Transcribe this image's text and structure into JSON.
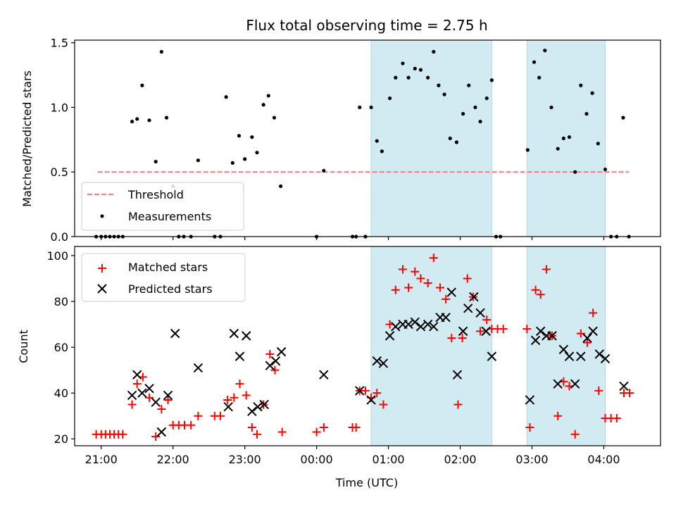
{
  "chart_data": {
    "title": "Flux total observing time = 2.75 h",
    "xlabel": "Time (UTC)",
    "x_axis": {
      "unit": "hours since 21:00 UTC (monotonic across midnight)",
      "range": [
        -0.37,
        7.79
      ],
      "ticks": [
        {
          "value": 0,
          "label": "21:00"
        },
        {
          "value": 1,
          "label": "22:00"
        },
        {
          "value": 2,
          "label": "23:00"
        },
        {
          "value": 3,
          "label": "00:00"
        },
        {
          "value": 4,
          "label": "01:00"
        },
        {
          "value": 5,
          "label": "02:00"
        },
        {
          "value": 6,
          "label": "03:00"
        },
        {
          "value": 7,
          "label": "04:00"
        }
      ]
    },
    "shaded_intervals": [
      [
        3.76,
        5.44
      ],
      [
        5.93,
        7.02
      ]
    ],
    "shade_color": "#add8e6",
    "panels": [
      {
        "id": "top",
        "type": "scatter",
        "ylabel": "Matched/Predicted stars",
        "ylim": [
          0,
          1.52
        ],
        "yticks": [
          0.0,
          0.5,
          1.0,
          1.5
        ],
        "ytick_labels": [
          "0.0",
          "0.5",
          "1.0",
          "1.5"
        ],
        "legend": {
          "position": "lower-left",
          "entries": [
            "Threshold",
            "Measurements"
          ]
        },
        "threshold": {
          "name": "Threshold",
          "y": 0.5,
          "x_range": [
            -0.05,
            7.35
          ],
          "color": "#f08080"
        },
        "measurements": {
          "name": "Measurements",
          "color": "#000000",
          "points": [
            [
              -0.07,
              0
            ],
            [
              0.0,
              0
            ],
            [
              0.06,
              0
            ],
            [
              0.12,
              0
            ],
            [
              0.18,
              0
            ],
            [
              0.24,
              0
            ],
            [
              0.3,
              0
            ],
            [
              0.43,
              0.89
            ],
            [
              0.5,
              0.91
            ],
            [
              0.57,
              1.17
            ],
            [
              0.67,
              0.9
            ],
            [
              0.76,
              0.58
            ],
            [
              0.84,
              1.43
            ],
            [
              0.91,
              0.92
            ],
            [
              1.0,
              0.39
            ],
            [
              1.08,
              0
            ],
            [
              1.15,
              0
            ],
            [
              1.25,
              0
            ],
            [
              1.35,
              0.59
            ],
            [
              1.58,
              0
            ],
            [
              1.66,
              0
            ],
            [
              1.74,
              1.08
            ],
            [
              1.83,
              0.57
            ],
            [
              1.92,
              0.78
            ],
            [
              2.0,
              0.6
            ],
            [
              2.1,
              0.77
            ],
            [
              2.17,
              0.65
            ],
            [
              2.26,
              1.02
            ],
            [
              2.33,
              1.09
            ],
            [
              2.41,
              0.92
            ],
            [
              2.5,
              0.39
            ],
            [
              3.0,
              0
            ],
            [
              3.1,
              0.51
            ],
            [
              3.5,
              0
            ],
            [
              3.55,
              0
            ],
            [
              3.6,
              1.0
            ],
            [
              3.68,
              0
            ],
            [
              3.76,
              1.0
            ],
            [
              3.84,
              0.74
            ],
            [
              3.91,
              0.66
            ],
            [
              4.02,
              1.07
            ],
            [
              4.1,
              1.23
            ],
            [
              4.2,
              1.34
            ],
            [
              4.28,
              1.23
            ],
            [
              4.37,
              1.3
            ],
            [
              4.45,
              1.29
            ],
            [
              4.55,
              1.23
            ],
            [
              4.63,
              1.43
            ],
            [
              4.7,
              1.17
            ],
            [
              4.78,
              1.1
            ],
            [
              4.86,
              0.76
            ],
            [
              4.95,
              0.73
            ],
            [
              5.04,
              0.95
            ],
            [
              5.12,
              1.17
            ],
            [
              5.21,
              1.0
            ],
            [
              5.28,
              0.89
            ],
            [
              5.37,
              1.07
            ],
            [
              5.44,
              1.21
            ],
            [
              5.5,
              0
            ],
            [
              5.56,
              0
            ],
            [
              5.94,
              0.67
            ],
            [
              6.03,
              1.35
            ],
            [
              6.1,
              1.23
            ],
            [
              6.18,
              1.44
            ],
            [
              6.27,
              1.0
            ],
            [
              6.36,
              0.68
            ],
            [
              6.44,
              0.76
            ],
            [
              6.52,
              0.77
            ],
            [
              6.6,
              0.5
            ],
            [
              6.68,
              1.17
            ],
            [
              6.76,
              0.95
            ],
            [
              6.84,
              1.11
            ],
            [
              6.92,
              0.72
            ],
            [
              7.02,
              0.52
            ],
            [
              7.1,
              0
            ],
            [
              7.18,
              0
            ],
            [
              7.27,
              0.92
            ],
            [
              7.35,
              0
            ]
          ]
        }
      },
      {
        "id": "bottom",
        "type": "scatter",
        "ylabel": "Count",
        "xlabel": "Time (UTC)",
        "ylim": [
          17,
          104
        ],
        "yticks": [
          20,
          40,
          60,
          80,
          100
        ],
        "ytick_labels": [
          "20",
          "40",
          "60",
          "80",
          "100"
        ],
        "legend": {
          "position": "upper-left",
          "entries": [
            "Matched stars",
            "Predicted stars"
          ]
        },
        "series": [
          {
            "name": "Matched stars",
            "marker": "+",
            "color": "#ff0000",
            "points": [
              [
                -0.07,
                22
              ],
              [
                0.0,
                22
              ],
              [
                0.06,
                22
              ],
              [
                0.12,
                22
              ],
              [
                0.18,
                22
              ],
              [
                0.24,
                22
              ],
              [
                0.3,
                22
              ],
              [
                0.43,
                35
              ],
              [
                0.5,
                44
              ],
              [
                0.58,
                47
              ],
              [
                0.67,
                38
              ],
              [
                0.76,
                21
              ],
              [
                0.84,
                33
              ],
              [
                0.93,
                37
              ],
              [
                1.0,
                26
              ],
              [
                1.08,
                26
              ],
              [
                1.16,
                26
              ],
              [
                1.25,
                26
              ],
              [
                1.35,
                30
              ],
              [
                1.58,
                30
              ],
              [
                1.66,
                30
              ],
              [
                1.76,
                37
              ],
              [
                1.85,
                38
              ],
              [
                1.93,
                44
              ],
              [
                2.02,
                39
              ],
              [
                2.1,
                25
              ],
              [
                2.17,
                22
              ],
              [
                2.26,
                35
              ],
              [
                2.35,
                57
              ],
              [
                2.42,
                50
              ],
              [
                2.52,
                23
              ],
              [
                3.0,
                23
              ],
              [
                3.1,
                25
              ],
              [
                3.5,
                25
              ],
              [
                3.55,
                25
              ],
              [
                3.6,
                41
              ],
              [
                3.68,
                41
              ],
              [
                3.76,
                38
              ],
              [
                3.84,
                40
              ],
              [
                3.93,
                35
              ],
              [
                4.02,
                70
              ],
              [
                4.1,
                85
              ],
              [
                4.2,
                94
              ],
              [
                4.28,
                86
              ],
              [
                4.37,
                93
              ],
              [
                4.45,
                90
              ],
              [
                4.55,
                88
              ],
              [
                4.63,
                99
              ],
              [
                4.72,
                86
              ],
              [
                4.8,
                81
              ],
              [
                4.88,
                64
              ],
              [
                5.03,
                64
              ],
              [
                4.97,
                35
              ],
              [
                5.1,
                90
              ],
              [
                5.18,
                82
              ],
              [
                5.28,
                67
              ],
              [
                5.37,
                72
              ],
              [
                5.44,
                68
              ],
              [
                5.52,
                68
              ],
              [
                5.6,
                68
              ],
              [
                5.93,
                68
              ],
              [
                5.97,
                25
              ],
              [
                6.05,
                85
              ],
              [
                6.12,
                83
              ],
              [
                6.2,
                94
              ],
              [
                6.28,
                65
              ],
              [
                6.36,
                30
              ],
              [
                6.44,
                45
              ],
              [
                6.52,
                43
              ],
              [
                6.6,
                22
              ],
              [
                6.68,
                66
              ],
              [
                6.77,
                62
              ],
              [
                6.85,
                75
              ],
              [
                6.93,
                41
              ],
              [
                7.02,
                29
              ],
              [
                7.1,
                29
              ],
              [
                7.18,
                29
              ],
              [
                7.28,
                40
              ],
              [
                7.36,
                40
              ]
            ]
          },
          {
            "name": "Predicted stars",
            "marker": "x",
            "color": "#000000",
            "points": [
              [
                0.43,
                39
              ],
              [
                0.5,
                48
              ],
              [
                0.57,
                40
              ],
              [
                0.67,
                42
              ],
              [
                0.76,
                36
              ],
              [
                0.84,
                23
              ],
              [
                0.93,
                39
              ],
              [
                1.03,
                66
              ],
              [
                1.35,
                51
              ],
              [
                1.77,
                34
              ],
              [
                1.85,
                66
              ],
              [
                1.93,
                56
              ],
              [
                2.02,
                65
              ],
              [
                2.1,
                32
              ],
              [
                2.18,
                34
              ],
              [
                2.27,
                35
              ],
              [
                2.35,
                52
              ],
              [
                2.43,
                54
              ],
              [
                2.51,
                58
              ],
              [
                3.1,
                48
              ],
              [
                3.6,
                41
              ],
              [
                3.76,
                37
              ],
              [
                3.84,
                54
              ],
              [
                3.93,
                53
              ],
              [
                4.02,
                65
              ],
              [
                4.1,
                69
              ],
              [
                4.2,
                70
              ],
              [
                4.28,
                70
              ],
              [
                4.37,
                71
              ],
              [
                4.45,
                69
              ],
              [
                4.55,
                70
              ],
              [
                4.63,
                69
              ],
              [
                4.72,
                73
              ],
              [
                4.8,
                73
              ],
              [
                4.88,
                84
              ],
              [
                4.96,
                48
              ],
              [
                5.04,
                67
              ],
              [
                5.11,
                77
              ],
              [
                5.19,
                82
              ],
              [
                5.28,
                75
              ],
              [
                5.36,
                67
              ],
              [
                5.44,
                56
              ],
              [
                5.97,
                37
              ],
              [
                6.05,
                63
              ],
              [
                6.12,
                67
              ],
              [
                6.2,
                65
              ],
              [
                6.28,
                65
              ],
              [
                6.36,
                44
              ],
              [
                6.44,
                59
              ],
              [
                6.52,
                56
              ],
              [
                6.6,
                44
              ],
              [
                6.68,
                56
              ],
              [
                6.77,
                64
              ],
              [
                6.85,
                67
              ],
              [
                6.94,
                57
              ],
              [
                7.02,
                55
              ],
              [
                7.28,
                43
              ]
            ]
          }
        ]
      }
    ]
  }
}
